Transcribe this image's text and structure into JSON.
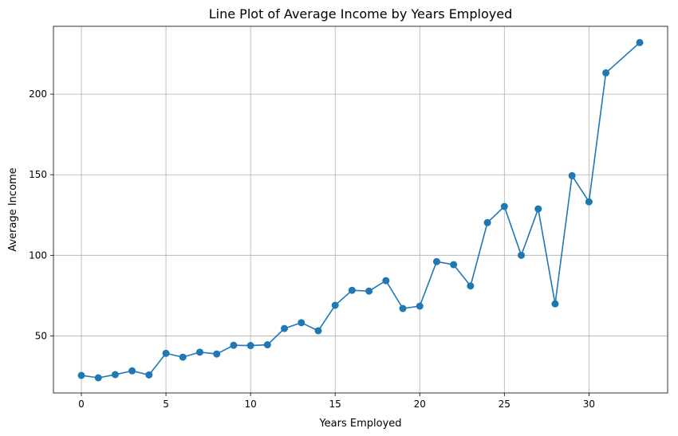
{
  "chart_data": {
    "type": "line",
    "title": "Line Plot of Average Income by Years Employed",
    "xlabel": "Years Employed",
    "ylabel": "Average Income",
    "grid": true,
    "xlim": [
      -1.65,
      34.65
    ],
    "ylim": [
      14.6,
      242.1
    ],
    "xticks": [
      0,
      5,
      10,
      15,
      20,
      25,
      30
    ],
    "yticks": [
      50,
      100,
      150,
      200
    ],
    "series": [
      {
        "color": "#1f77b4",
        "marker": "circle",
        "x": [
          0,
          1,
          2,
          3,
          4,
          5,
          6,
          7,
          8,
          9,
          10,
          11,
          12,
          13,
          14,
          15,
          16,
          17,
          18,
          19,
          20,
          21,
          22,
          23,
          24,
          25,
          26,
          27,
          28,
          29,
          30,
          31,
          33
        ],
        "y": [
          25.5,
          24,
          26,
          28.3,
          25.8,
          39.2,
          36.8,
          39.9,
          38.8,
          44.2,
          44,
          44.5,
          54.6,
          58.2,
          53.2,
          69,
          78.3,
          77.8,
          84.3,
          67,
          68.5,
          96.1,
          94.2,
          81,
          120.3,
          130.3,
          100,
          128.8,
          69.9,
          149.4,
          133.2,
          213.2,
          232
        ]
      }
    ]
  }
}
